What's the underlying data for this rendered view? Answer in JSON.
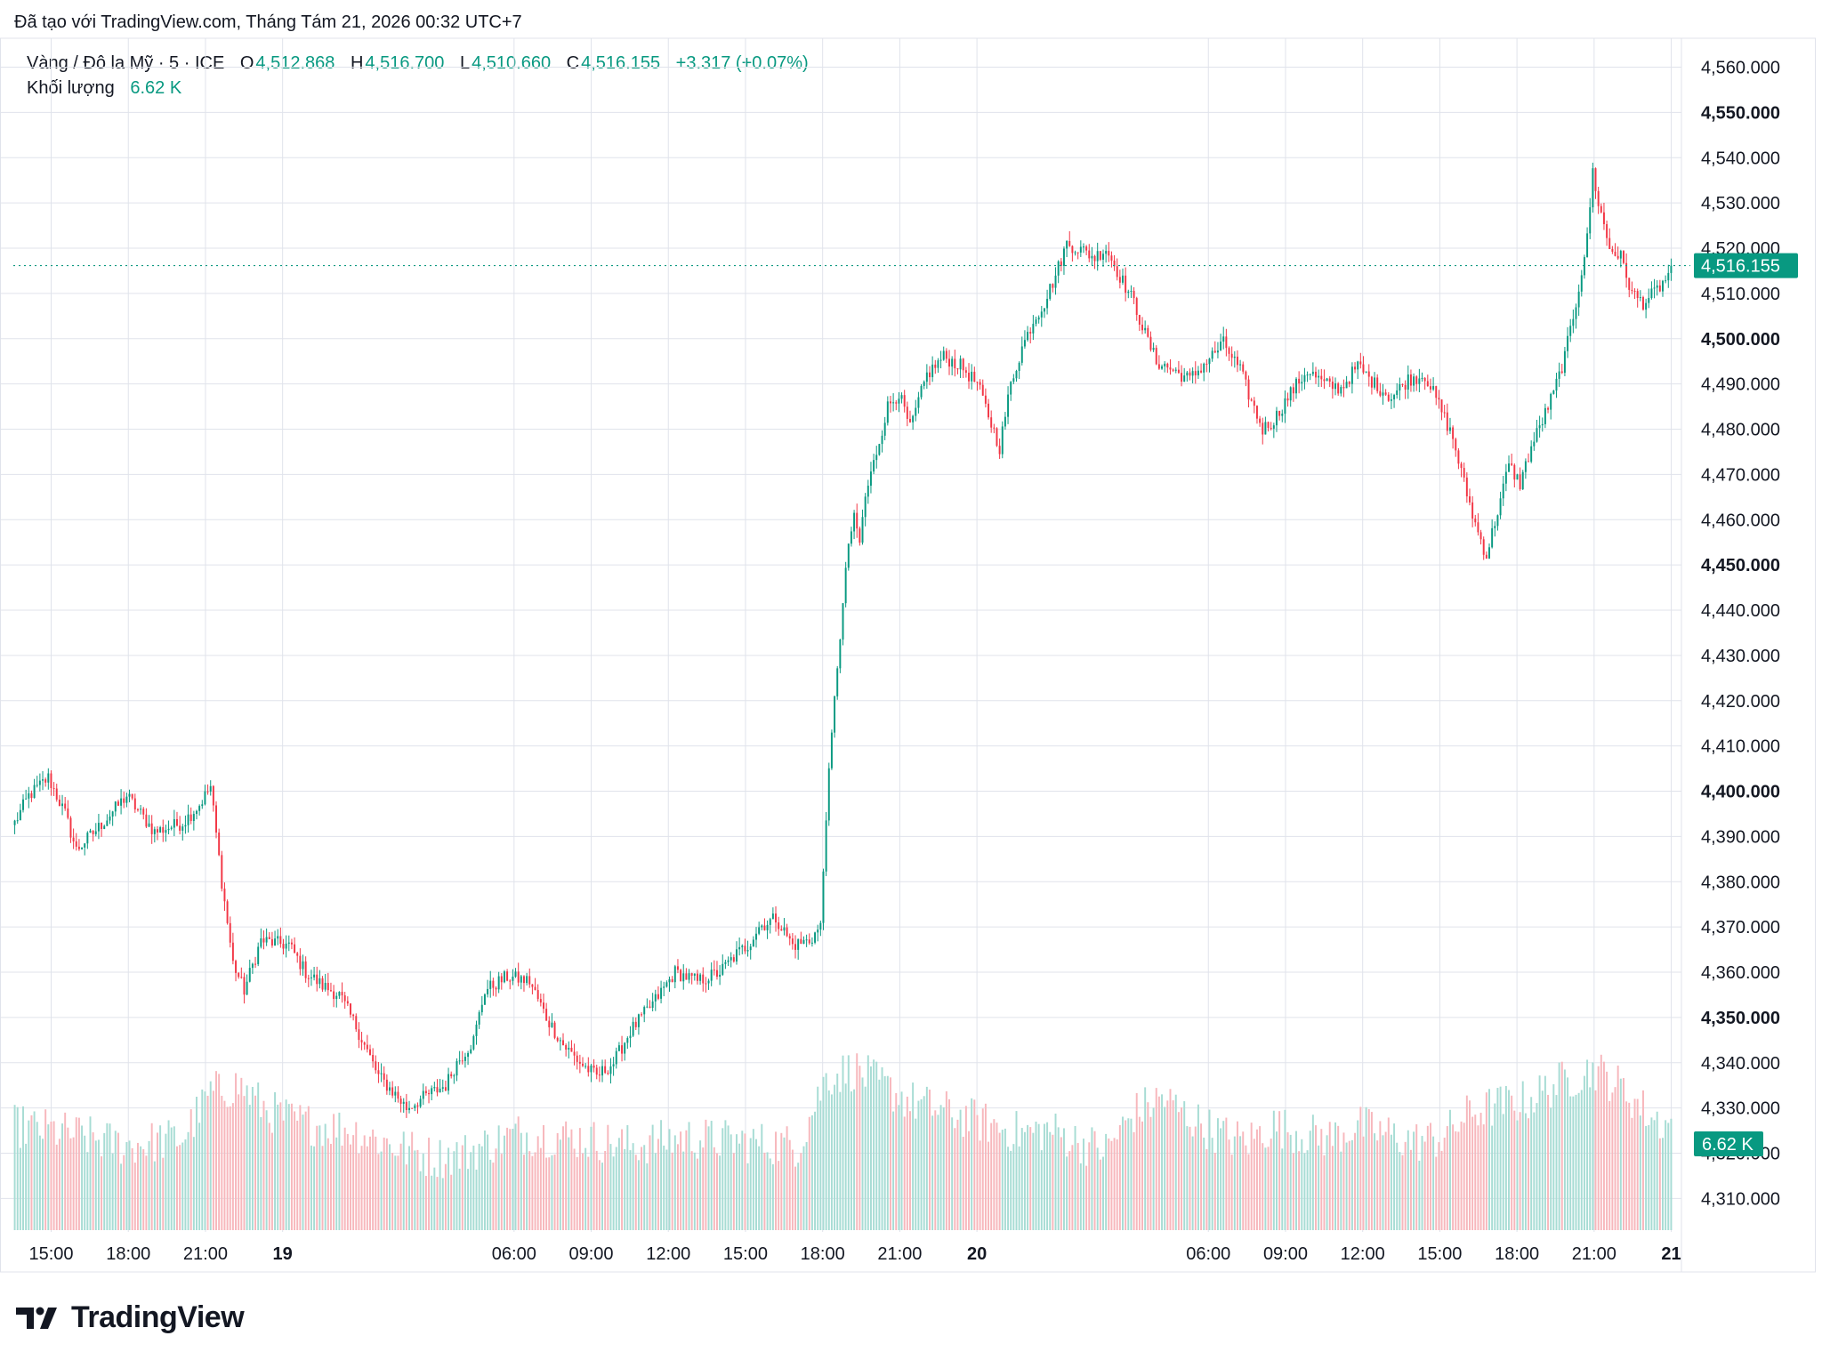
{
  "header": {
    "created_text": "Đã tạo với TradingView.com, Tháng Tám 21, 2026 00:32 UTC+7"
  },
  "legend": {
    "symbol": "Vàng / Đô la Mỹ · 5 · ICE",
    "o_label": "O",
    "o_value": "4,512.868",
    "h_label": "H",
    "h_value": "4,516.700",
    "l_label": "L",
    "l_value": "4,510.660",
    "c_label": "C",
    "c_value": "4,516.155",
    "change": "+3.317 (+0.07%)",
    "volume_label": "Khối lượng",
    "volume_value": "6.62 K"
  },
  "footer": {
    "brand": "TradingView"
  },
  "colors": {
    "up": "#089981",
    "down": "#f23645",
    "volume_up": "#a7dcd4",
    "volume_down": "#f7b7bc",
    "grid": "#e0e3eb",
    "axis_text": "#131722"
  },
  "chart_data": {
    "type": "candlestick",
    "title": "Vàng / Đô la Mỹ · 5 · ICE",
    "y_axis": {
      "position": "right",
      "ylim": [
        4303,
        4566
      ],
      "ticks": [
        4310,
        4320,
        4330,
        4340,
        4350,
        4360,
        4370,
        4380,
        4390,
        4400,
        4410,
        4420,
        4430,
        4440,
        4450,
        4460,
        4470,
        4480,
        4490,
        4500,
        4510,
        4520,
        4530,
        4540,
        4550,
        4560
      ],
      "tick_labels": [
        "4,310.000",
        "4,320.000",
        "4,330.000",
        "4,340.000",
        "4,350.000",
        "4,360.000",
        "4,370.000",
        "4,380.000",
        "4,390.000",
        "4,400.000",
        "4,410.000",
        "4,420.000",
        "4,430.000",
        "4,440.000",
        "4,450.000",
        "4,460.000",
        "4,470.000",
        "4,480.000",
        "4,490.000",
        "4,500.000",
        "4,510.000",
        "4,520.000",
        "4,530.000",
        "4,540.000",
        "4,550.000",
        "4,560.000"
      ],
      "bold_ticks": [
        4350,
        4400,
        4450,
        4500,
        4550
      ]
    },
    "x_axis": {
      "ticks": [
        "15:00",
        "18:00",
        "21:00",
        "19",
        "06:00",
        "09:00",
        "12:00",
        "15:00",
        "18:00",
        "21:00",
        "20",
        "06:00",
        "09:00",
        "12:00",
        "15:00",
        "18:00",
        "21:00",
        "21"
      ],
      "bold_ticks": [
        "19",
        "20",
        "21"
      ]
    },
    "last_price": 4516.155,
    "last_price_label": "4,516.155",
    "last_volume_label": "6.62 K",
    "price_path": [
      [
        0,
        4393
      ],
      [
        5,
        4399
      ],
      [
        12,
        4403
      ],
      [
        18,
        4395
      ],
      [
        22,
        4387
      ],
      [
        30,
        4392
      ],
      [
        40,
        4399
      ],
      [
        50,
        4391
      ],
      [
        60,
        4393
      ],
      [
        66,
        4397
      ],
      [
        70,
        4401
      ],
      [
        74,
        4380
      ],
      [
        78,
        4362
      ],
      [
        82,
        4356
      ],
      [
        88,
        4367
      ],
      [
        98,
        4366
      ],
      [
        104,
        4360
      ],
      [
        110,
        4357
      ],
      [
        116,
        4355
      ],
      [
        122,
        4348
      ],
      [
        130,
        4337
      ],
      [
        136,
        4333
      ],
      [
        140,
        4330
      ],
      [
        148,
        4333
      ],
      [
        154,
        4335
      ],
      [
        158,
        4340
      ],
      [
        164,
        4345
      ],
      [
        168,
        4356
      ],
      [
        176,
        4359
      ],
      [
        184,
        4358
      ],
      [
        190,
        4350
      ],
      [
        196,
        4344
      ],
      [
        202,
        4340
      ],
      [
        208,
        4337
      ],
      [
        214,
        4340
      ],
      [
        220,
        4347
      ],
      [
        228,
        4353
      ],
      [
        236,
        4360
      ],
      [
        244,
        4358
      ],
      [
        252,
        4360
      ],
      [
        258,
        4364
      ],
      [
        262,
        4366
      ],
      [
        266,
        4370
      ],
      [
        272,
        4372
      ],
      [
        278,
        4366
      ],
      [
        284,
        4367
      ],
      [
        288,
        4370
      ],
      [
        290,
        4395
      ],
      [
        292,
        4412
      ],
      [
        294,
        4428
      ],
      [
        296,
        4441
      ],
      [
        298,
        4455
      ],
      [
        300,
        4460
      ],
      [
        302,
        4455
      ],
      [
        304,
        4465
      ],
      [
        308,
        4475
      ],
      [
        312,
        4485
      ],
      [
        316,
        4488
      ],
      [
        320,
        4480
      ],
      [
        326,
        4492
      ],
      [
        332,
        4496
      ],
      [
        338,
        4494
      ],
      [
        344,
        4490
      ],
      [
        348,
        4483
      ],
      [
        352,
        4476
      ],
      [
        356,
        4490
      ],
      [
        360,
        4498
      ],
      [
        364,
        4504
      ],
      [
        368,
        4508
      ],
      [
        372,
        4514
      ],
      [
        376,
        4521
      ],
      [
        380,
        4520
      ],
      [
        386,
        4518
      ],
      [
        390,
        4520
      ],
      [
        394,
        4515
      ],
      [
        400,
        4508
      ],
      [
        404,
        4501
      ],
      [
        408,
        4495
      ],
      [
        414,
        4493
      ],
      [
        420,
        4491
      ],
      [
        426,
        4495
      ],
      [
        432,
        4499
      ],
      [
        438,
        4493
      ],
      [
        442,
        4486
      ],
      [
        446,
        4480
      ],
      [
        450,
        4482
      ],
      [
        456,
        4488
      ],
      [
        462,
        4493
      ],
      [
        468,
        4490
      ],
      [
        474,
        4489
      ],
      [
        480,
        4494
      ],
      [
        486,
        4490
      ],
      [
        492,
        4487
      ],
      [
        498,
        4491
      ],
      [
        504,
        4492
      ],
      [
        510,
        4484
      ],
      [
        514,
        4478
      ],
      [
        518,
        4468
      ],
      [
        522,
        4459
      ],
      [
        526,
        4452
      ],
      [
        530,
        4462
      ],
      [
        534,
        4472
      ],
      [
        538,
        4468
      ],
      [
        542,
        4476
      ],
      [
        546,
        4482
      ],
      [
        550,
        4488
      ],
      [
        554,
        4496
      ],
      [
        558,
        4508
      ],
      [
        562,
        4522
      ],
      [
        564,
        4537
      ],
      [
        566,
        4530
      ],
      [
        570,
        4520
      ],
      [
        574,
        4518
      ],
      [
        578,
        4510
      ],
      [
        582,
        4508
      ],
      [
        586,
        4510
      ],
      [
        590,
        4513
      ],
      [
        592,
        4516.155
      ]
    ],
    "volume_path": [
      [
        0,
        2.6
      ],
      [
        20,
        2.4
      ],
      [
        40,
        2.1
      ],
      [
        60,
        2.3
      ],
      [
        70,
        3.4
      ],
      [
        80,
        3.6
      ],
      [
        90,
        3.0
      ],
      [
        100,
        2.7
      ],
      [
        120,
        2.5
      ],
      [
        140,
        2.0
      ],
      [
        150,
        1.8
      ],
      [
        160,
        1.9
      ],
      [
        180,
        2.4
      ],
      [
        200,
        2.3
      ],
      [
        220,
        2.1
      ],
      [
        240,
        2.3
      ],
      [
        260,
        2.2
      ],
      [
        280,
        2.1
      ],
      [
        290,
        3.8
      ],
      [
        300,
        4.0
      ],
      [
        310,
        3.6
      ],
      [
        320,
        3.2
      ],
      [
        330,
        3.0
      ],
      [
        340,
        2.8
      ],
      [
        350,
        2.6
      ],
      [
        360,
        2.4
      ],
      [
        370,
        2.5
      ],
      [
        380,
        2.2
      ],
      [
        390,
        2.0
      ],
      [
        400,
        2.9
      ],
      [
        410,
        3.3
      ],
      [
        420,
        2.8
      ],
      [
        430,
        2.4
      ],
      [
        440,
        2.2
      ],
      [
        450,
        2.6
      ],
      [
        460,
        2.4
      ],
      [
        470,
        2.3
      ],
      [
        480,
        2.6
      ],
      [
        490,
        2.4
      ],
      [
        500,
        2.2
      ],
      [
        510,
        2.3
      ],
      [
        520,
        2.9
      ],
      [
        530,
        3.1
      ],
      [
        540,
        3.2
      ],
      [
        550,
        3.6
      ],
      [
        560,
        3.9
      ],
      [
        565,
        4.0
      ],
      [
        575,
        3.5
      ],
      [
        585,
        2.8
      ],
      [
        592,
        2.6
      ]
    ]
  }
}
